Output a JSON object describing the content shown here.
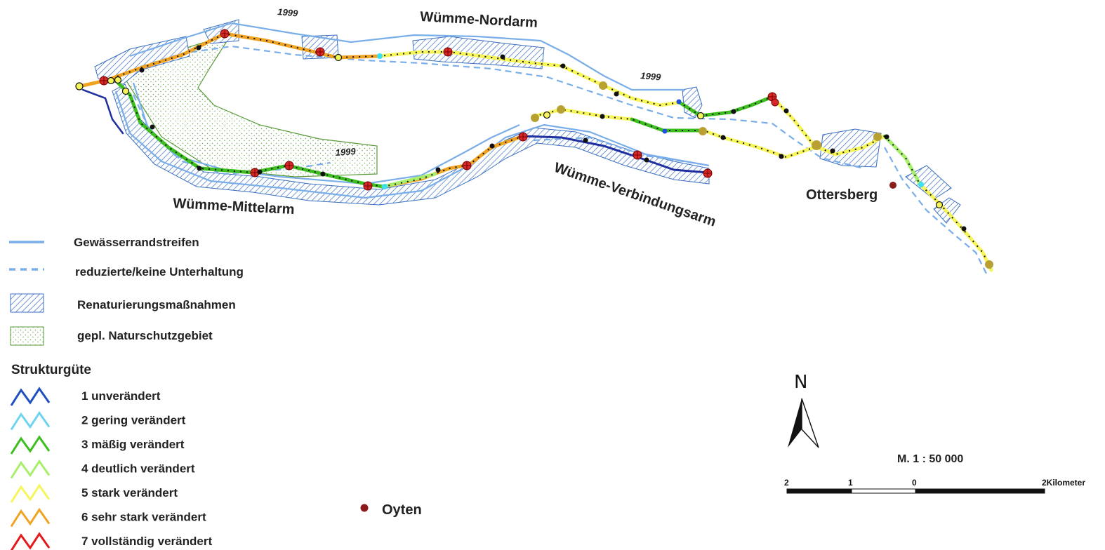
{
  "labels": {
    "nordarm": "Wümme-Nordarm",
    "mittelarm": "Wümme-Mittelarm",
    "verbindungsarm": "Wümme-Verbindungsarm",
    "ottersberg": "Ottersberg",
    "oyten": "Oyten",
    "year_a": "1999",
    "year_b": "1999",
    "year_c": "1999"
  },
  "legend": {
    "items": [
      {
        "label": "Gewässerrandstreifen",
        "symbol": "solid-line"
      },
      {
        "label": "reduzierte/keine Unterhaltung",
        "symbol": "dashed-line"
      },
      {
        "label": "Renaturierungsmaßnahmen",
        "symbol": "hatched-box"
      },
      {
        "label": "gepl. Naturschutzgebiet",
        "symbol": "stippled-box"
      }
    ],
    "struktur_title": "Strukturgüte",
    "struktur": [
      {
        "label": "1  unverändert",
        "color": "#1f4fbf"
      },
      {
        "label": "2 gering verändert",
        "color": "#6fd3ef"
      },
      {
        "label": "3 mäßig verändert",
        "color": "#3cbf1e"
      },
      {
        "label": "4 deutlich verändert",
        "color": "#a7ef6a"
      },
      {
        "label": "5 stark verändert",
        "color": "#f6f65a"
      },
      {
        "label": "6 sehr stark verändert",
        "color": "#f0a321"
      },
      {
        "label": "7 vollständig verändert",
        "color": "#e41a1a"
      }
    ]
  },
  "north": "N",
  "scale": {
    "text": "M. 1 : 50 000",
    "tick_2": "2",
    "tick_1": "1",
    "tick_0": "0",
    "tick_end": "2Kilometer"
  },
  "colors": {
    "buffer": "#7aaee8",
    "hatch": "#3a6fc0",
    "nsg": "#5a9a3a",
    "marker_red": "#d42a2a",
    "marker_olive": "#b8a032",
    "town": "#8b1a1a"
  }
}
